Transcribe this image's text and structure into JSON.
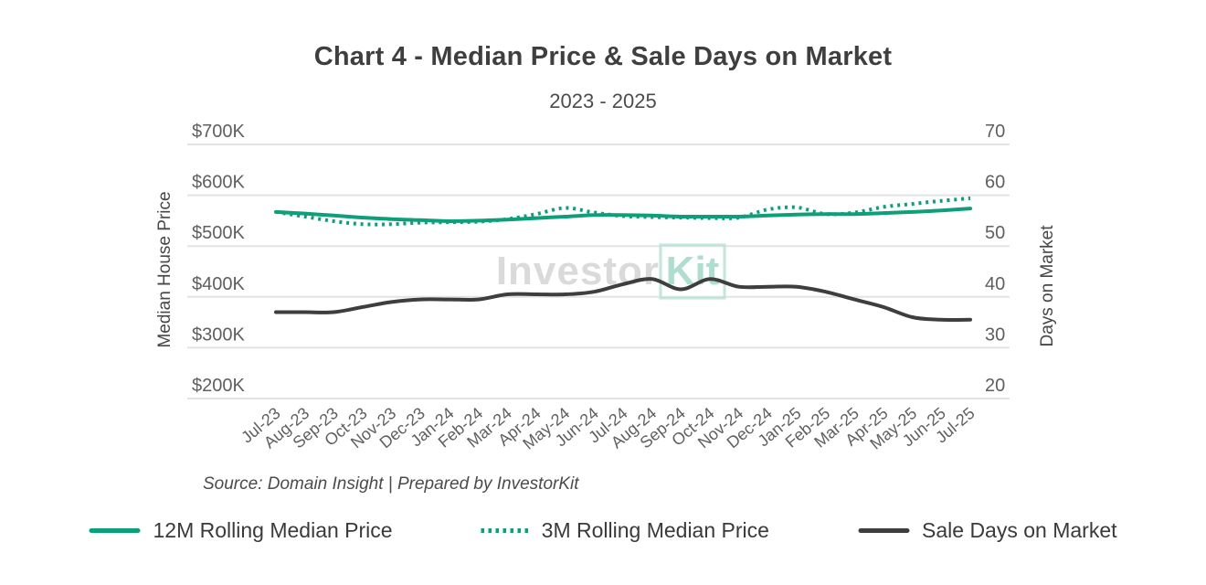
{
  "header": {
    "title": "Chart 4 - Median Price & Sale Days on Market",
    "subtitle": "2023 - 2025"
  },
  "watermark": {
    "part1": "Investor",
    "part2": "Kit"
  },
  "source_note": "Source: Domain Insight | Prepared by InvestorKit",
  "colors": {
    "teal": "#0d9f79",
    "dark_line": "#3e3e3e",
    "grid": "#e3e3e3",
    "tick_text": "#5f5f5f",
    "watermark_gray": "#d9d9d9",
    "watermark_teal": "#aaddcd",
    "watermark_box_border": "#bfe5d9"
  },
  "chart_data": {
    "type": "line",
    "title": "Chart 4 - Median Price & Sale Days on Market",
    "subtitle": "2023 - 2025",
    "grid": true,
    "legend_position": "bottom",
    "x": [
      "Jul-23",
      "Aug-23",
      "Sep-23",
      "Oct-23",
      "Nov-23",
      "Dec-23",
      "Jan-24",
      "Feb-24",
      "Mar-24",
      "Apr-24",
      "May-24",
      "Jun-24",
      "Jul-24",
      "Aug-24",
      "Sep-24",
      "Oct-24",
      "Nov-24",
      "Dec-24",
      "Jan-25",
      "Feb-25",
      "Mar-25",
      "Apr-25",
      "May-25",
      "Jun-25",
      "Jul-25"
    ],
    "left_axis": {
      "label": "Median House Price",
      "tick_labels": [
        "$700K",
        "$600K",
        "$500K",
        "$400K",
        "$300K",
        "$200K"
      ],
      "tick_values": [
        700,
        600,
        500,
        400,
        300,
        200
      ],
      "range": [
        200,
        700
      ],
      "unit": "thousand dollars"
    },
    "right_axis": {
      "label": "Days on Market",
      "tick_labels": [
        "70",
        "60",
        "50",
        "40",
        "30",
        "20"
      ],
      "tick_values": [
        70,
        60,
        50,
        40,
        30,
        20
      ],
      "range": [
        20,
        70
      ]
    },
    "series": [
      {
        "name": "12M Rolling Median Price",
        "axis": "left",
        "style": "solid",
        "color": "#0d9f79",
        "values": [
          567,
          564,
          560,
          556,
          553,
          551,
          549,
          550,
          552,
          555,
          558,
          561,
          561,
          560,
          558,
          558,
          558,
          560,
          562,
          563,
          563,
          565,
          567,
          570,
          574
        ]
      },
      {
        "name": "3M Rolling Median Price",
        "axis": "left",
        "style": "dotted",
        "color": "#0d9f79",
        "values": [
          567,
          558,
          549,
          543,
          543,
          546,
          547,
          548,
          553,
          563,
          575,
          566,
          559,
          557,
          556,
          555,
          556,
          572,
          576,
          563,
          566,
          577,
          583,
          589,
          594
        ]
      },
      {
        "name": "Sale Days on Market",
        "axis": "right",
        "style": "solid",
        "color": "#3e3e3e",
        "values": [
          37,
          37,
          37,
          38,
          39,
          39.5,
          39.5,
          39.5,
          40.5,
          40.5,
          40.5,
          41,
          42.5,
          43.5,
          41.5,
          43.5,
          42,
          42,
          42,
          41,
          39.5,
          38,
          36,
          35.5,
          35.5
        ]
      }
    ]
  }
}
